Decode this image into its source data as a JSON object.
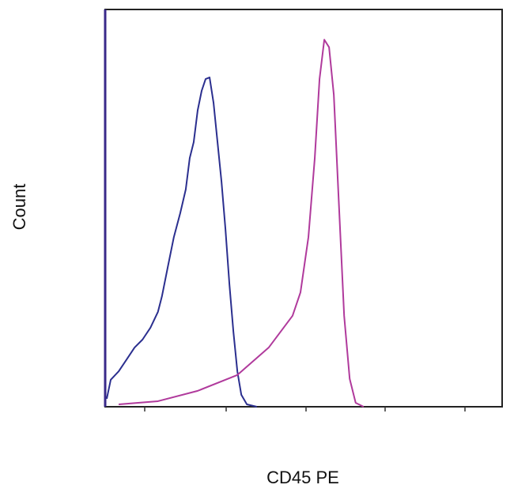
{
  "chart_data": {
    "type": "line",
    "x_label": "CD45 PE",
    "y_label": "Count",
    "xlim": [
      0,
      100
    ],
    "ylim": [
      0,
      100
    ],
    "series": [
      {
        "color": "#2b2f8f",
        "x": [
          0.4,
          1.4,
          3.4,
          5.4,
          7.4,
          9.4,
          11.4,
          13.3,
          14.3,
          15.7,
          17.3,
          18.9,
          20.3,
          21.3,
          22.3,
          23.3,
          24.3,
          25.3,
          26.3,
          27.3,
          28.3,
          29.3,
          30.3,
          31.3,
          32.3,
          33.3,
          34.3,
          35.7,
          38.2
        ],
        "values": [
          2.0,
          6.8,
          8.9,
          11.9,
          14.9,
          16.9,
          19.9,
          23.9,
          27.8,
          34.8,
          42.7,
          48.7,
          54.7,
          62.6,
          66.6,
          74.6,
          79.5,
          82.5,
          82.9,
          76.5,
          66.6,
          56.7,
          44.7,
          30.8,
          18.9,
          8.9,
          3.0,
          0.6,
          0
        ]
      },
      {
        "color": "#b03a9c",
        "x": [
          3.4,
          13.3,
          23.3,
          33.3,
          41.2,
          47.2,
          49.2,
          51.2,
          52.8,
          54.0,
          55.2,
          56.4,
          57.6,
          58.8,
          60.2,
          61.6,
          63.1,
          65.1
        ],
        "values": [
          0.6,
          1.4,
          4.0,
          8.0,
          14.9,
          22.9,
          28.8,
          42.7,
          62.6,
          82.5,
          92.4,
          90.5,
          78.5,
          52.7,
          22.9,
          7.0,
          1.0,
          0
        ]
      }
    ]
  }
}
